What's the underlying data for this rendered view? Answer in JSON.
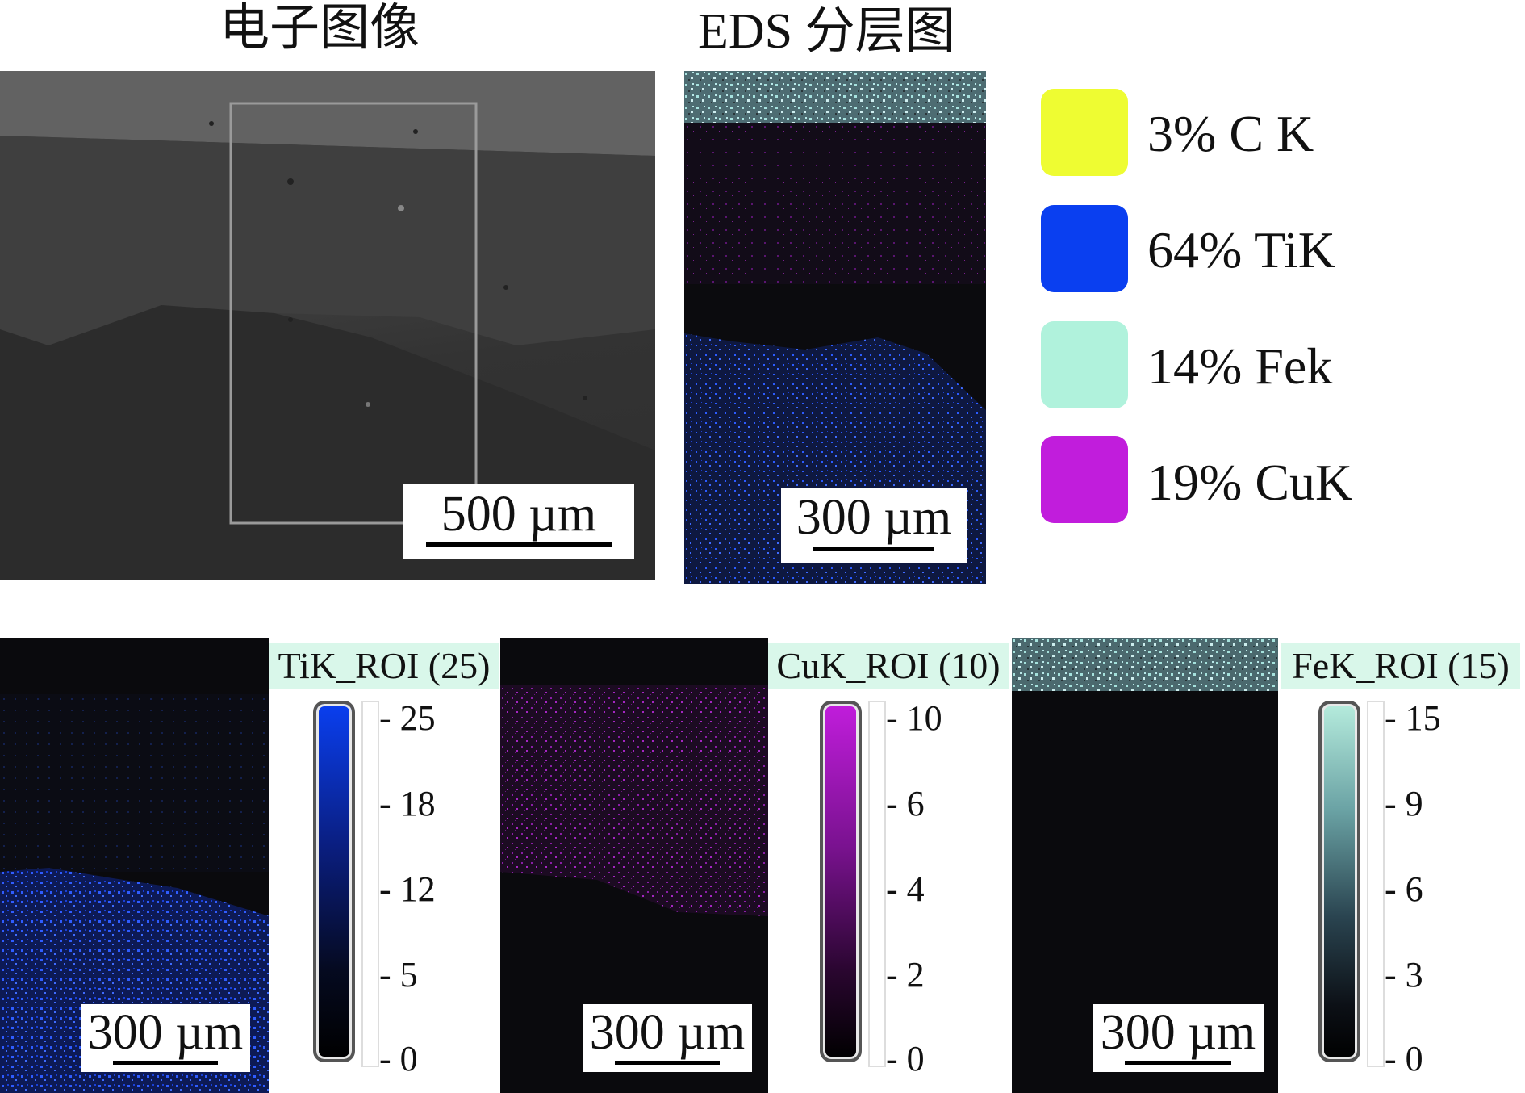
{
  "titles": {
    "electron_image": "电子图像",
    "eds_layered": "EDS 分层图"
  },
  "scale_bars": {
    "sem": "500 µm",
    "eds": "300 µm",
    "ti": "300 µm",
    "cu": "300 µm",
    "fe": "300 µm"
  },
  "legend": [
    {
      "label": "3% C K",
      "color": "#eefc32"
    },
    {
      "label": "64% TiK",
      "color": "#0a3ff0"
    },
    {
      "label": "14% Fek",
      "color": "#b0f2dc"
    },
    {
      "label": "19% CuK",
      "color": "#c11ddc"
    }
  ],
  "maps": [
    {
      "roi_label": "TiK_ROI (25)",
      "ticks": [
        "25",
        "18",
        "12",
        "5",
        "0"
      ],
      "color": "#0a3ff0"
    },
    {
      "roi_label": "CuK_ROI (10)",
      "ticks": [
        "10",
        "6",
        "4",
        "2",
        "0"
      ],
      "color": "#c11ddc"
    },
    {
      "roi_label": "FeK_ROI (15)",
      "ticks": [
        "15",
        "9",
        "6",
        "3",
        "0"
      ],
      "color": "#9fe0cf"
    }
  ]
}
